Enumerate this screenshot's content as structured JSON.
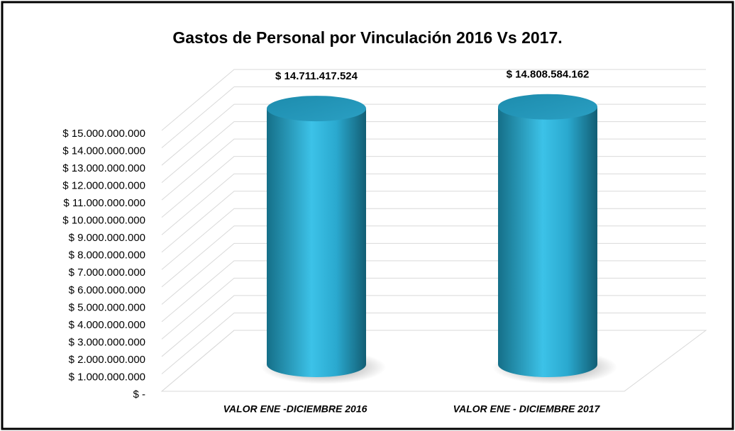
{
  "chart_data": {
    "type": "bar3d",
    "title": "Gastos de Personal por Vinculación 2016 Vs 2017.",
    "categories": [
      "VALOR ENE -DICIEMBRE 2016",
      "VALOR ENE - DICIEMBRE 2017"
    ],
    "values": [
      14711417524,
      14808584162
    ],
    "value_labels": [
      "$ 14.711.417.524",
      "$ 14.808.584.162"
    ],
    "color": "#2bb0d6",
    "ylim": [
      0,
      15000000000
    ],
    "yticks": [
      {
        "value": 0,
        "label": "$ -"
      },
      {
        "value": 1000000000,
        "label": "$ 1.000.000.000"
      },
      {
        "value": 2000000000,
        "label": "$ 2.000.000.000"
      },
      {
        "value": 3000000000,
        "label": "$ 3.000.000.000"
      },
      {
        "value": 4000000000,
        "label": "$ 4.000.000.000"
      },
      {
        "value": 5000000000,
        "label": "$ 5.000.000.000"
      },
      {
        "value": 6000000000,
        "label": "$ 6.000.000.000"
      },
      {
        "value": 7000000000,
        "label": "$ 7.000.000.000"
      },
      {
        "value": 8000000000,
        "label": "$ 8.000.000.000"
      },
      {
        "value": 9000000000,
        "label": "$ 9.000.000.000"
      },
      {
        "value": 10000000000,
        "label": "$ 10.000.000.000"
      },
      {
        "value": 11000000000,
        "label": "$ 11.000.000.000"
      },
      {
        "value": 12000000000,
        "label": "$ 12.000.000.000"
      },
      {
        "value": 13000000000,
        "label": "$ 13.000.000.000"
      },
      {
        "value": 14000000000,
        "label": "$ 14.000.000.000"
      },
      {
        "value": 15000000000,
        "label": "$ 15.000.000.000"
      }
    ],
    "grid": true
  }
}
